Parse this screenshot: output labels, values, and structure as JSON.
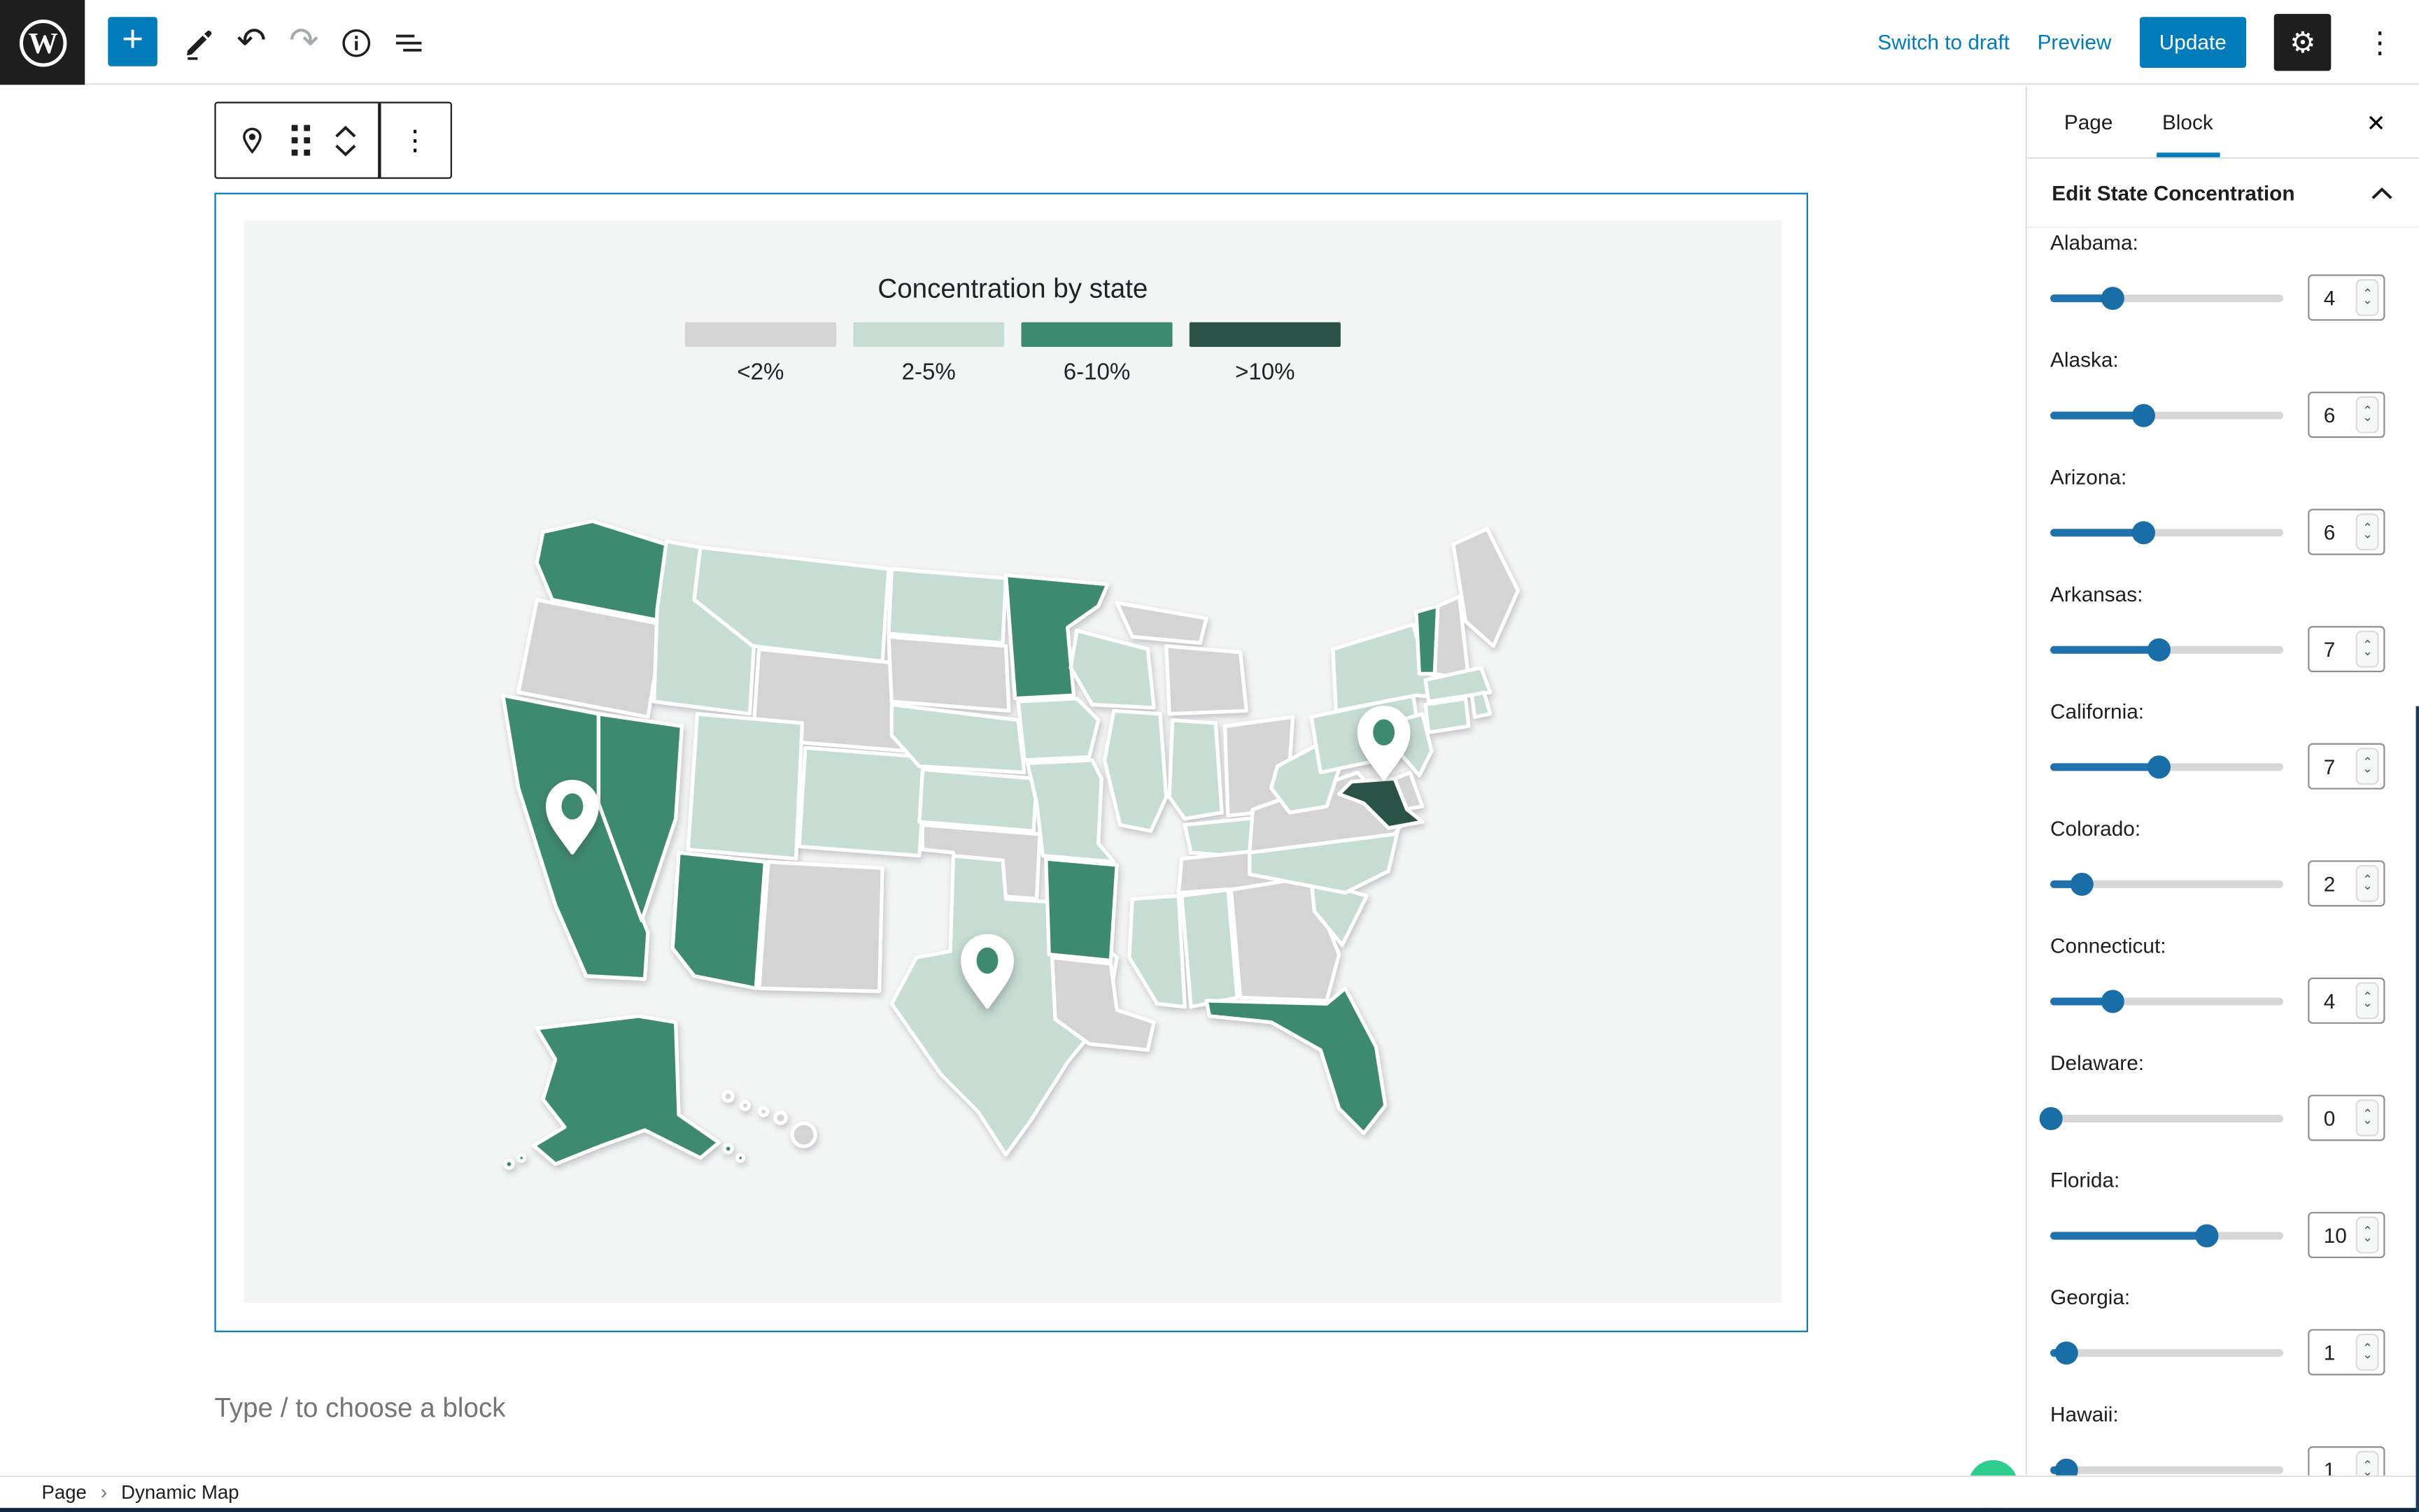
{
  "header": {
    "switch_to_draft": "Switch to draft",
    "preview": "Preview",
    "update": "Update",
    "icons": {
      "add": "+",
      "undo": "↶",
      "redo": "↷",
      "gear": "⚙",
      "kebab": "⋮"
    }
  },
  "block_toolbar": {
    "icons": [
      "map-pin",
      "drag-handle",
      "move-up",
      "move-down",
      "options-kebab"
    ]
  },
  "map_block": {
    "title": "Concentration by state",
    "legend": [
      {
        "label": "<2%",
        "bucket": "lt2"
      },
      {
        "label": "2-5%",
        "bucket": "2-5"
      },
      {
        "label": "6-10%",
        "bucket": "6-10"
      },
      {
        "label": ">10%",
        "bucket": "gt10"
      }
    ],
    "colors": {
      "lt2": "#d4d4d5",
      "2-5": "#c5ddd2",
      "6-10": "#3e8a70",
      "gt10": "#2a5246"
    },
    "background": "#f3f4f4",
    "pins": [
      "California",
      "Texas",
      "Maryland"
    ],
    "states": [
      {
        "name": "Washington",
        "bucket": "6-10"
      },
      {
        "name": "Oregon",
        "bucket": "lt2"
      },
      {
        "name": "California",
        "bucket": "6-10"
      },
      {
        "name": "Nevada",
        "bucket": "6-10"
      },
      {
        "name": "Idaho",
        "bucket": "2-5"
      },
      {
        "name": "Montana",
        "bucket": "2-5"
      },
      {
        "name": "Wyoming",
        "bucket": "lt2"
      },
      {
        "name": "Utah",
        "bucket": "2-5"
      },
      {
        "name": "Colorado",
        "bucket": "2-5"
      },
      {
        "name": "Arizona",
        "bucket": "6-10"
      },
      {
        "name": "NewMexico",
        "bucket": "lt2"
      },
      {
        "name": "NorthDakota",
        "bucket": "2-5"
      },
      {
        "name": "SouthDakota",
        "bucket": "lt2"
      },
      {
        "name": "Nebraska",
        "bucket": "2-5"
      },
      {
        "name": "Kansas",
        "bucket": "2-5"
      },
      {
        "name": "Oklahoma",
        "bucket": "lt2"
      },
      {
        "name": "Texas",
        "bucket": "2-5"
      },
      {
        "name": "Minnesota",
        "bucket": "6-10"
      },
      {
        "name": "Iowa",
        "bucket": "2-5"
      },
      {
        "name": "Missouri",
        "bucket": "2-5"
      },
      {
        "name": "Arkansas",
        "bucket": "6-10"
      },
      {
        "name": "Louisiana",
        "bucket": "lt2"
      },
      {
        "name": "Wisconsin",
        "bucket": "2-5"
      },
      {
        "name": "Illinois",
        "bucket": "2-5"
      },
      {
        "name": "MichiganUP",
        "bucket": "lt2"
      },
      {
        "name": "Michigan",
        "bucket": "lt2"
      },
      {
        "name": "Indiana",
        "bucket": "2-5"
      },
      {
        "name": "Ohio",
        "bucket": "lt2"
      },
      {
        "name": "Kentucky",
        "bucket": "2-5"
      },
      {
        "name": "Tennessee",
        "bucket": "lt2"
      },
      {
        "name": "Mississippi",
        "bucket": "2-5"
      },
      {
        "name": "Alabama",
        "bucket": "2-5"
      },
      {
        "name": "Georgia",
        "bucket": "lt2"
      },
      {
        "name": "Florida",
        "bucket": "6-10"
      },
      {
        "name": "SouthCarolina",
        "bucket": "2-5"
      },
      {
        "name": "NorthCarolina",
        "bucket": "2-5"
      },
      {
        "name": "Virginia",
        "bucket": "lt2"
      },
      {
        "name": "WestVirginia",
        "bucket": "2-5"
      },
      {
        "name": "Pennsylvania",
        "bucket": "2-5"
      },
      {
        "name": "NewYork",
        "bucket": "2-5"
      },
      {
        "name": "Vermont",
        "bucket": "6-10"
      },
      {
        "name": "NewHampshire",
        "bucket": "lt2"
      },
      {
        "name": "Maine",
        "bucket": "lt2"
      },
      {
        "name": "Massachusetts",
        "bucket": "2-5"
      },
      {
        "name": "RhodeIsland",
        "bucket": "2-5"
      },
      {
        "name": "Connecticut",
        "bucket": "2-5"
      },
      {
        "name": "NewJersey",
        "bucket": "2-5"
      },
      {
        "name": "Delaware",
        "bucket": "lt2"
      },
      {
        "name": "Maryland",
        "bucket": "gt10"
      },
      {
        "name": "Alaska",
        "bucket": "6-10"
      },
      {
        "name": "Hawaii",
        "bucket": "lt2"
      }
    ]
  },
  "placeholder": "Type / to choose a block",
  "sidebar": {
    "tabs": [
      {
        "label": "Page",
        "active": false
      },
      {
        "label": "Block",
        "active": true
      }
    ],
    "close_icon": "✕",
    "panel_title": "Edit State Concentration",
    "slider_max": 15,
    "controls": [
      {
        "label": "Alabama:",
        "value": 4
      },
      {
        "label": "Alaska:",
        "value": 6
      },
      {
        "label": "Arizona:",
        "value": 6
      },
      {
        "label": "Arkansas:",
        "value": 7
      },
      {
        "label": "California:",
        "value": 7
      },
      {
        "label": "Colorado:",
        "value": 2
      },
      {
        "label": "Connecticut:",
        "value": 4
      },
      {
        "label": "Delaware:",
        "value": 0
      },
      {
        "label": "Florida:",
        "value": 10
      },
      {
        "label": "Georgia:",
        "value": 1
      },
      {
        "label": "Hawaii:",
        "value": 1
      }
    ]
  },
  "breadcrumb": {
    "root": "Page",
    "separator": "›",
    "current": "Dynamic Map"
  }
}
